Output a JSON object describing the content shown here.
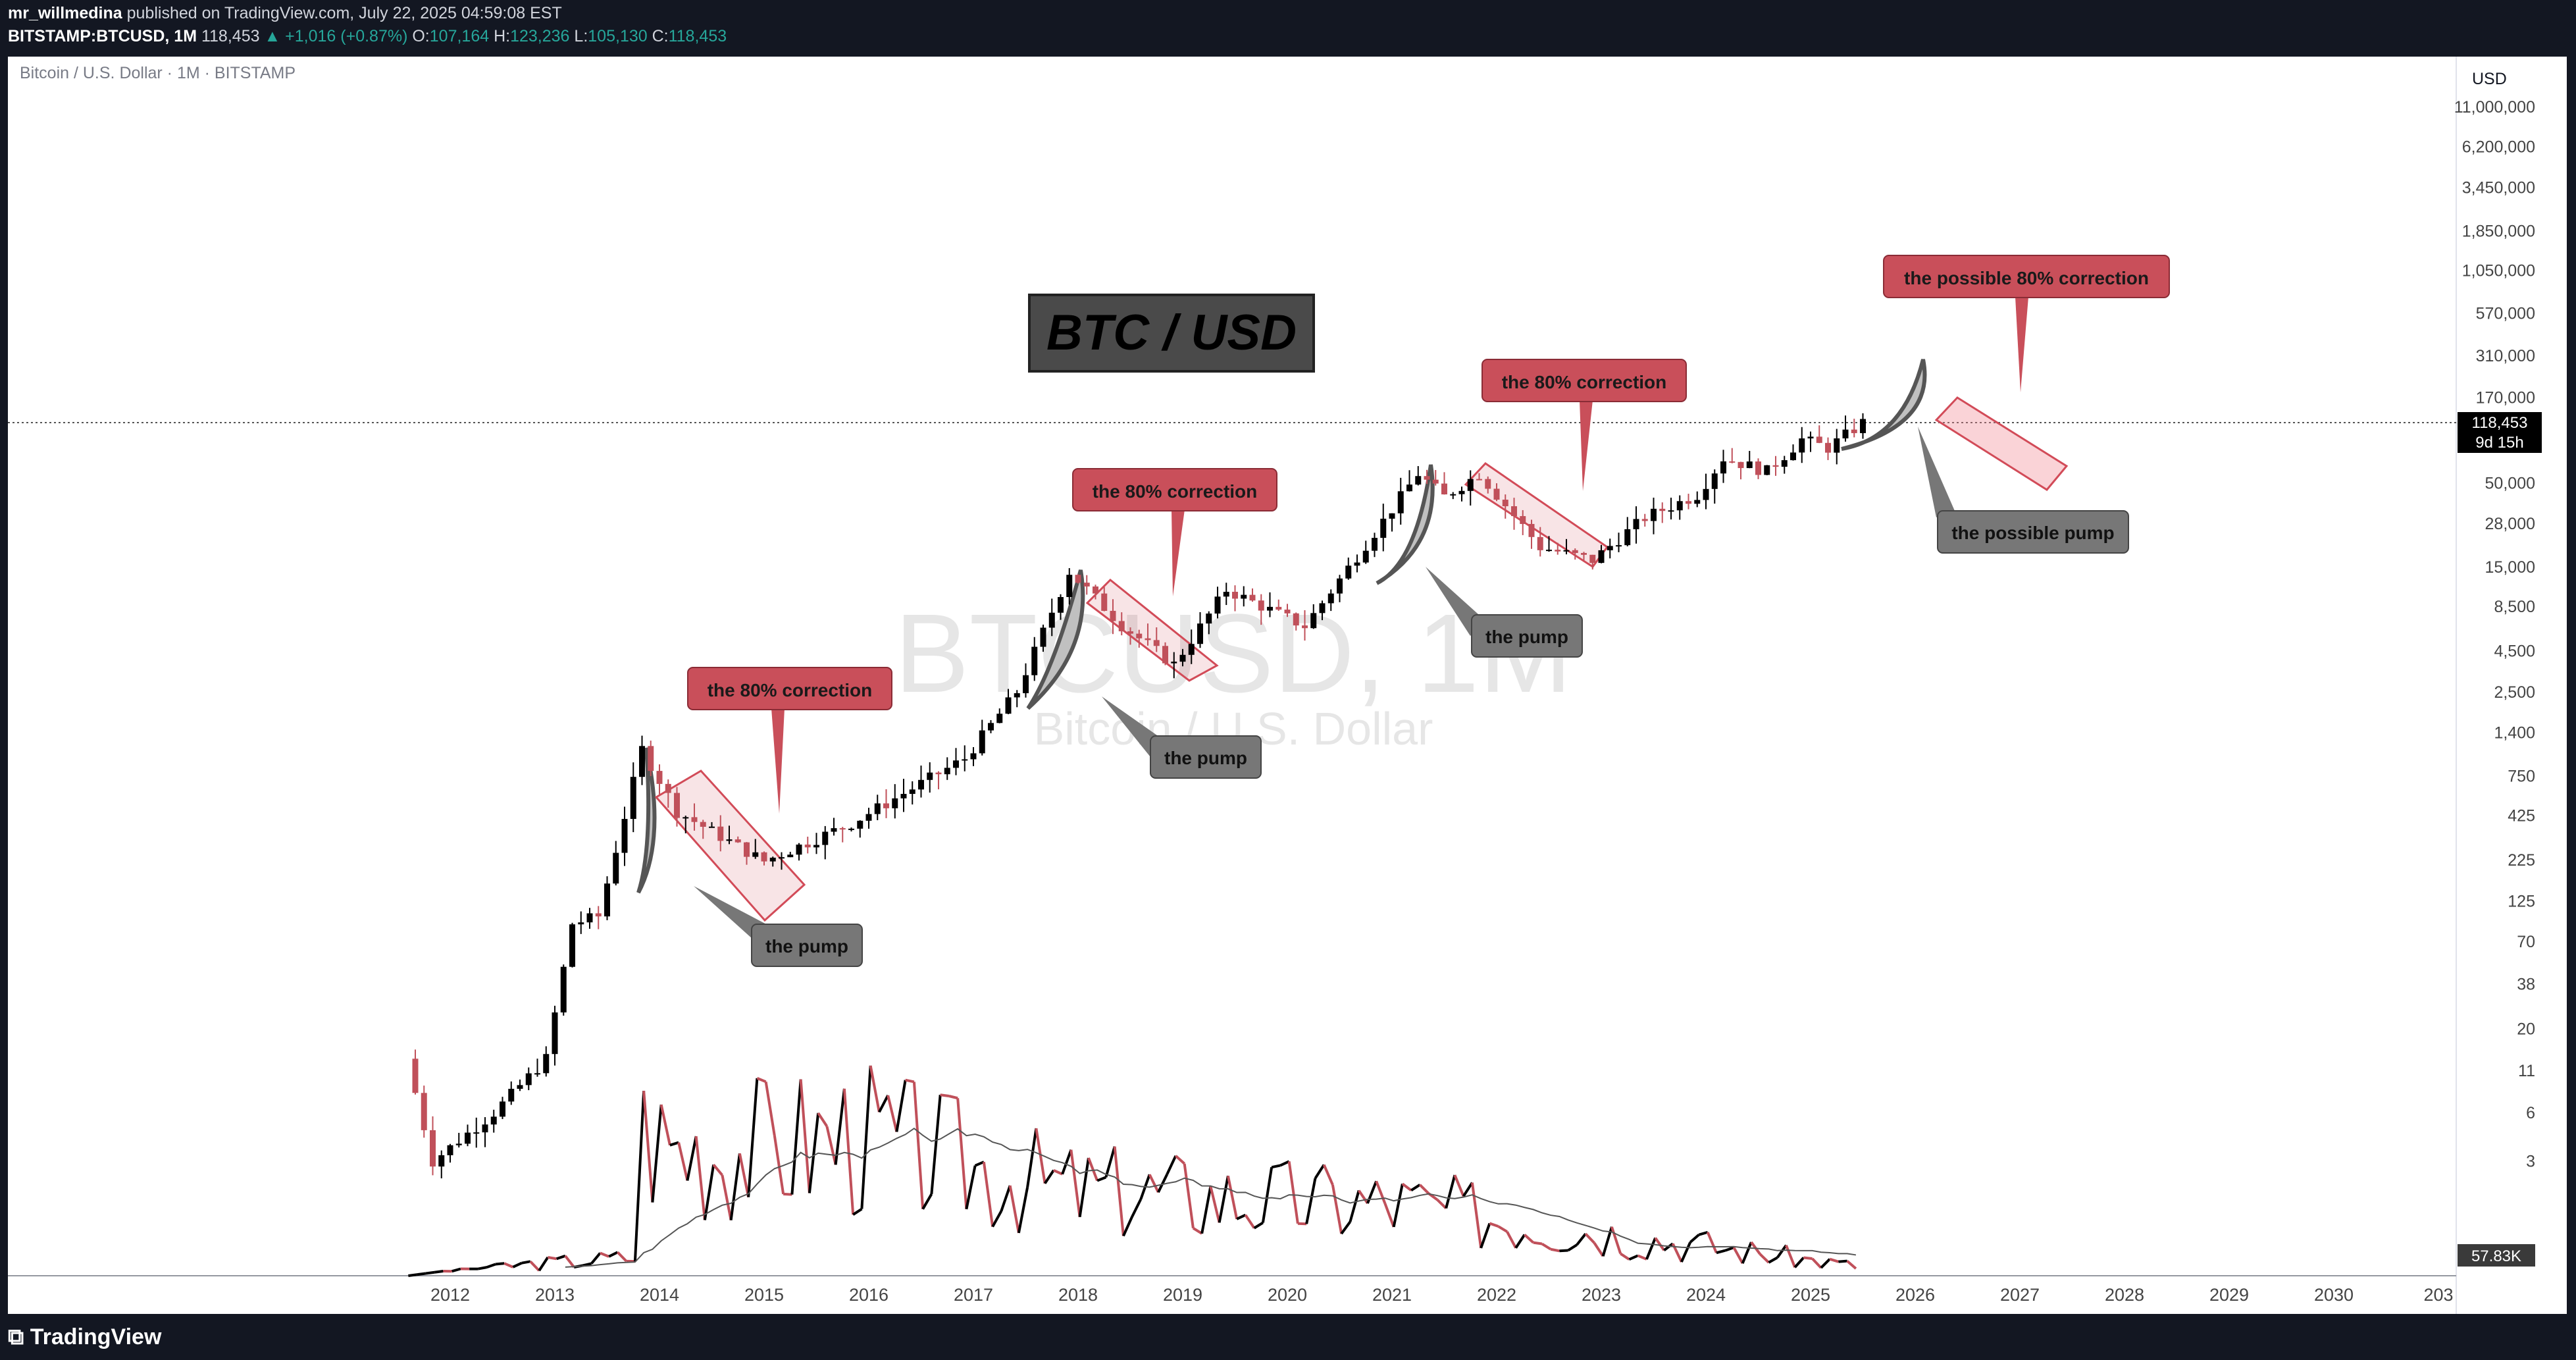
{
  "header": {
    "author": "mr_willmedina",
    "published_text": "published on TradingView.com, July 22, 2025 04:59:08 EST",
    "symbol_line": "BITSTAMP:BTCUSD, 1M",
    "last": "118,453",
    "change": "+1,016 (+0.87%)",
    "open_label": "O:",
    "open": "107,164",
    "high_label": "H:",
    "high": "123,236",
    "low_label": "L:",
    "low": "105,130",
    "close_label": "C:",
    "close": "118,453"
  },
  "chart_title": "Bitcoin / U.S. Dollar · 1M · BITSTAMP",
  "watermark": {
    "symbol": "BTCUSD, 1M",
    "name": "Bitcoin / U.S. Dollar"
  },
  "title_box": "BTC / USD",
  "currency": "USD",
  "price_badge": {
    "price": "118,453",
    "countdown": "9d 15h"
  },
  "volume_badge": "57.83K",
  "colors": {
    "up": "#000000",
    "down": "#c0505a",
    "pump": "#777777",
    "correction": "#d24b58",
    "bg_dark": "#131722"
  },
  "annotations": {
    "corrections": [
      "the 80% correction",
      "the 80% correction",
      "the 80% correction"
    ],
    "pumps": [
      "the pump",
      "the pump",
      "the pump"
    ],
    "possible_correction": "the possible 80% correction",
    "possible_pump": "the possible pump"
  },
  "footer": {
    "brand": "TradingView"
  },
  "chart_data": {
    "type": "candlestick",
    "title": "Bitcoin / U.S. Dollar · 1M · BITSTAMP",
    "y_scale": "log",
    "y_ticks": [
      3,
      6,
      11,
      20,
      38,
      70,
      125,
      225,
      425,
      750,
      1400,
      2500,
      4500,
      8500,
      15000,
      28000,
      50000,
      170000,
      310000,
      570000,
      1050000,
      1850000,
      3450000,
      6200000,
      11000000
    ],
    "x_ticks": [
      "2012",
      "2013",
      "2014",
      "2015",
      "2016",
      "2017",
      "2018",
      "2019",
      "2020",
      "2021",
      "2022",
      "2023",
      "2024",
      "2025",
      "2026",
      "2027",
      "2028",
      "2029",
      "2030",
      "203"
    ],
    "current_price": 118453,
    "series_keypoints": [
      {
        "date": "2011-08",
        "price": 13
      },
      {
        "date": "2011-11",
        "price": 3
      },
      {
        "date": "2012-06",
        "price": 6
      },
      {
        "date": "2012-12",
        "price": 13
      },
      {
        "date": "2013-03",
        "price": 90
      },
      {
        "date": "2013-06",
        "price": 100
      },
      {
        "date": "2013-11",
        "price": 1100
      },
      {
        "date": "2014-03",
        "price": 450
      },
      {
        "date": "2015-01",
        "price": 220
      },
      {
        "date": "2015-11",
        "price": 380
      },
      {
        "date": "2016-12",
        "price": 960
      },
      {
        "date": "2017-06",
        "price": 2500
      },
      {
        "date": "2017-12",
        "price": 14000
      },
      {
        "date": "2018-06",
        "price": 6500
      },
      {
        "date": "2018-12",
        "price": 3700
      },
      {
        "date": "2019-06",
        "price": 10800
      },
      {
        "date": "2020-03",
        "price": 6400
      },
      {
        "date": "2020-12",
        "price": 29000
      },
      {
        "date": "2021-04",
        "price": 57000
      },
      {
        "date": "2021-07",
        "price": 41000
      },
      {
        "date": "2021-11",
        "price": 57000
      },
      {
        "date": "2022-06",
        "price": 19900
      },
      {
        "date": "2022-12",
        "price": 16500
      },
      {
        "date": "2023-06",
        "price": 30400
      },
      {
        "date": "2023-12",
        "price": 42200
      },
      {
        "date": "2024-03",
        "price": 71300
      },
      {
        "date": "2024-08",
        "price": 59000
      },
      {
        "date": "2024-12",
        "price": 93400
      },
      {
        "date": "2025-03",
        "price": 82500
      },
      {
        "date": "2025-07",
        "price": 118453
      }
    ],
    "volume_keypoints": [
      {
        "date": "2013-11",
        "level": 0.85
      },
      {
        "date": "2014-02",
        "level": 0.75
      },
      {
        "date": "2015-01",
        "level": 0.75
      },
      {
        "date": "2015-11",
        "level": 0.82
      },
      {
        "date": "2017-12",
        "level": 0.5
      },
      {
        "date": "2020-03",
        "level": 0.43
      },
      {
        "date": "2021-01",
        "level": 0.42
      },
      {
        "date": "2025-07",
        "level": 0.05
      }
    ]
  }
}
